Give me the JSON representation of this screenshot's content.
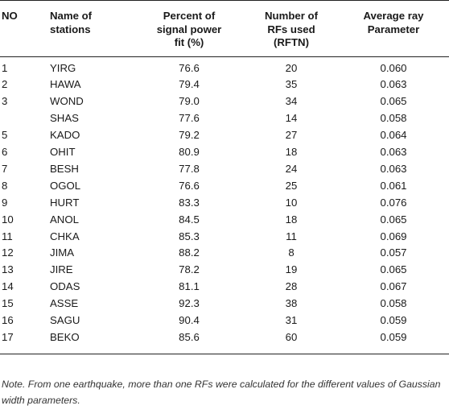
{
  "table": {
    "headers": [
      "NO",
      "Name of\nstations",
      "Percent of\nsignal power\nfit (%)",
      "Number of\nRFs used\n(RFTN)",
      "Average ray\nParameter"
    ],
    "rows": [
      [
        "1",
        "YIRG",
        "76.6",
        "20",
        "0.060"
      ],
      [
        "2",
        "HAWA",
        "79.4",
        "35",
        "0.063"
      ],
      [
        "3",
        "WOND",
        "79.0",
        "34",
        "0.065"
      ],
      [
        "",
        "SHAS",
        "77.6",
        "14",
        "0.058"
      ],
      [
        "5",
        "KADO",
        "79.2",
        "27",
        "0.064"
      ],
      [
        "6",
        "OHIT",
        "80.9",
        "18",
        "0.063"
      ],
      [
        "7",
        "BESH",
        "77.8",
        "24",
        "0.063"
      ],
      [
        "8",
        "OGOL",
        "76.6",
        "25",
        "0.061"
      ],
      [
        "9",
        "HURT",
        "83.3",
        "10",
        "0.076"
      ],
      [
        "10",
        "ANOL",
        "84.5",
        "18",
        "0.065"
      ],
      [
        "11",
        "CHKA",
        "85.3",
        "11",
        "0.069"
      ],
      [
        "12",
        "JIMA",
        "88.2",
        "8",
        "0.057"
      ],
      [
        "13",
        "JIRE",
        "78.2",
        "19",
        "0.065"
      ],
      [
        "14",
        "ODAS",
        "81.1",
        "28",
        "0.067"
      ],
      [
        "15",
        "ASSE",
        "92.3",
        "38",
        "0.058"
      ],
      [
        "16",
        "SAGU",
        "90.4",
        "31",
        "0.059"
      ],
      [
        "17",
        "BEKO",
        "85.6",
        "60",
        "0.059"
      ]
    ]
  },
  "note": "Note. From one earthquake, more than one RFs were calculated for the different values of Gaussian width parameters."
}
